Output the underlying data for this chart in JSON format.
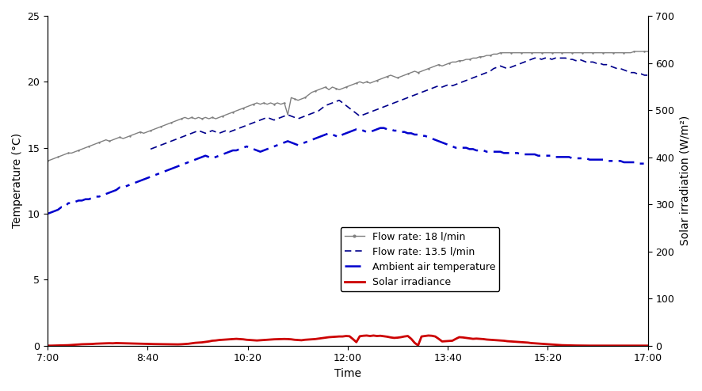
{
  "title": "",
  "xlabel": "Time",
  "ylabel_left": "Temperature (°C)",
  "ylabel_right": "Solar irradiation (W/m²)",
  "xlim": [
    0,
    600
  ],
  "ylim_left": [
    0,
    25
  ],
  "ylim_right": [
    0,
    700
  ],
  "xtick_labels": [
    "7:00",
    "8:40",
    "10:20",
    "12:00",
    "13:40",
    "15:20",
    "17:00"
  ],
  "xtick_positions": [
    0,
    100,
    200,
    300,
    400,
    500,
    600
  ],
  "ytick_left": [
    0,
    5,
    10,
    15,
    20,
    25
  ],
  "ytick_right": [
    0,
    100,
    200,
    300,
    400,
    500,
    600,
    700
  ],
  "legend_labels": [
    "Flow rate: 18 l/min",
    "Flow rate: 13.5 l/min",
    "Ambient air temperature",
    "Solar irradiance"
  ],
  "flow18_color": "#808080",
  "flow135_color": "#00008B",
  "ambient_color": "#0000CD",
  "solar_color": "#CC0000",
  "background_color": "#ffffff",
  "flow18": [
    14.0,
    14.1,
    14.2,
    14.3,
    14.4,
    14.5,
    14.6,
    14.6,
    14.7,
    14.8,
    14.9,
    15.0,
    15.1,
    15.2,
    15.3,
    15.4,
    15.5,
    15.6,
    15.5,
    15.6,
    15.7,
    15.8,
    15.7,
    15.8,
    15.9,
    16.0,
    16.1,
    16.2,
    16.1,
    16.2,
    16.3,
    16.4,
    16.5,
    16.6,
    16.7,
    16.8,
    16.9,
    17.0,
    17.1,
    17.2,
    17.3,
    17.2,
    17.3,
    17.2,
    17.3,
    17.2,
    17.3,
    17.2,
    17.3,
    17.2,
    17.3,
    17.4,
    17.5,
    17.6,
    17.7,
    17.8,
    17.9,
    18.0,
    18.1,
    18.2,
    18.3,
    18.4,
    18.3,
    18.4,
    18.3,
    18.4,
    18.3,
    18.4,
    18.3,
    18.4,
    17.5,
    18.8,
    18.7,
    18.6,
    18.7,
    18.8,
    19.0,
    19.2,
    19.3,
    19.4,
    19.5,
    19.6,
    19.4,
    19.6,
    19.5,
    19.4,
    19.5,
    19.6,
    19.7,
    19.8,
    19.9,
    20.0,
    19.9,
    20.0,
    19.9,
    20.0,
    20.1,
    20.2,
    20.3,
    20.4,
    20.5,
    20.4,
    20.3,
    20.4,
    20.5,
    20.6,
    20.7,
    20.8,
    20.7,
    20.8,
    20.9,
    21.0,
    21.1,
    21.2,
    21.3,
    21.2,
    21.3,
    21.4,
    21.5,
    21.5,
    21.6,
    21.6,
    21.7,
    21.7,
    21.8,
    21.8,
    21.9,
    21.9,
    22.0,
    22.0,
    22.1,
    22.1,
    22.2,
    22.2,
    22.2,
    22.2,
    22.2,
    22.2,
    22.2,
    22.2,
    22.2,
    22.2,
    22.2,
    22.2,
    22.2,
    22.2,
    22.2,
    22.2,
    22.2,
    22.2,
    22.2,
    22.2,
    22.2,
    22.2,
    22.2,
    22.2,
    22.2,
    22.2,
    22.2,
    22.2,
    22.2,
    22.2,
    22.2,
    22.2,
    22.2,
    22.2,
    22.2,
    22.2,
    22.2,
    22.2,
    22.2,
    22.3,
    22.3,
    22.3,
    22.3,
    22.3
  ],
  "flow135": [
    null,
    null,
    null,
    null,
    null,
    null,
    null,
    null,
    null,
    null,
    null,
    null,
    null,
    null,
    null,
    null,
    null,
    null,
    null,
    null,
    null,
    null,
    null,
    null,
    null,
    null,
    null,
    null,
    null,
    null,
    14.9,
    15.0,
    15.1,
    15.2,
    15.3,
    15.4,
    15.5,
    15.6,
    15.7,
    15.8,
    15.9,
    16.0,
    16.1,
    16.2,
    16.3,
    16.2,
    16.1,
    16.2,
    16.3,
    16.2,
    16.1,
    16.2,
    16.3,
    16.2,
    16.3,
    16.4,
    16.5,
    16.6,
    16.7,
    16.8,
    16.9,
    17.0,
    17.1,
    17.2,
    17.3,
    17.2,
    17.1,
    17.2,
    17.3,
    17.4,
    17.5,
    17.4,
    17.3,
    17.2,
    17.3,
    17.4,
    17.5,
    17.6,
    17.7,
    17.8,
    18.0,
    18.2,
    18.3,
    18.4,
    18.5,
    18.6,
    18.4,
    18.2,
    18.0,
    17.8,
    17.6,
    17.4,
    17.5,
    17.6,
    17.7,
    17.8,
    17.9,
    18.0,
    18.1,
    18.2,
    18.3,
    18.4,
    18.5,
    18.6,
    18.7,
    18.8,
    18.9,
    19.0,
    19.1,
    19.2,
    19.3,
    19.4,
    19.5,
    19.6,
    19.7,
    19.6,
    19.7,
    19.8,
    19.7,
    19.8,
    19.9,
    20.0,
    20.1,
    20.2,
    20.3,
    20.4,
    20.5,
    20.6,
    20.7,
    20.8,
    21.0,
    21.1,
    21.2,
    21.1,
    21.0,
    21.1,
    21.2,
    21.3,
    21.4,
    21.5,
    21.6,
    21.7,
    21.8,
    21.8,
    21.7,
    21.8,
    21.8,
    21.7,
    21.8,
    21.8,
    21.8,
    21.8,
    21.7,
    21.7,
    21.6,
    21.7,
    21.6,
    21.5,
    21.5,
    21.5,
    21.4,
    21.4,
    21.3,
    21.3,
    21.2,
    21.1,
    21.0,
    21.0,
    20.9,
    20.8,
    20.7,
    20.7,
    20.6,
    20.6,
    20.5,
    20.5,
    20.5,
    20.5,
    20.4,
    20.4,
    20.4
  ],
  "ambient": [
    10.0,
    10.1,
    10.2,
    10.3,
    10.5,
    10.5,
    10.8,
    10.8,
    10.9,
    11.0,
    11.0,
    11.1,
    11.1,
    11.2,
    11.3,
    11.3,
    11.4,
    11.5,
    11.6,
    11.7,
    11.8,
    12.0,
    12.0,
    12.1,
    12.2,
    12.3,
    12.4,
    12.5,
    12.6,
    12.7,
    12.8,
    12.9,
    13.0,
    13.1,
    13.2,
    13.3,
    13.4,
    13.5,
    13.6,
    13.7,
    13.8,
    13.9,
    14.0,
    14.1,
    14.2,
    14.3,
    14.4,
    14.3,
    14.2,
    14.3,
    14.4,
    14.5,
    14.6,
    14.7,
    14.8,
    14.8,
    14.9,
    15.0,
    15.1,
    15.0,
    14.9,
    14.8,
    14.7,
    14.8,
    14.9,
    15.0,
    15.1,
    15.2,
    15.3,
    15.4,
    15.5,
    15.4,
    15.3,
    15.2,
    15.3,
    15.4,
    15.5,
    15.6,
    15.7,
    15.8,
    15.9,
    16.0,
    16.1,
    16.0,
    15.9,
    15.8,
    16.0,
    16.1,
    16.2,
    16.3,
    16.4,
    16.4,
    16.3,
    16.2,
    16.2,
    16.3,
    16.4,
    16.5,
    16.5,
    16.4,
    16.4,
    16.3,
    16.3,
    16.2,
    16.2,
    16.1,
    16.1,
    16.0,
    16.0,
    15.9,
    15.9,
    15.8,
    15.7,
    15.6,
    15.5,
    15.4,
    15.3,
    15.2,
    15.1,
    15.0,
    15.0,
    15.0,
    15.0,
    14.9,
    14.9,
    14.8,
    14.8,
    14.8,
    14.7,
    14.7,
    14.7,
    14.7,
    14.7,
    14.6,
    14.6,
    14.6,
    14.6,
    14.6,
    14.5,
    14.5,
    14.5,
    14.5,
    14.5,
    14.4,
    14.4,
    14.4,
    14.4,
    14.4,
    14.3,
    14.3,
    14.3,
    14.3,
    14.3,
    14.2,
    14.2,
    14.2,
    14.2,
    14.2,
    14.1,
    14.1,
    14.1,
    14.1,
    14.1,
    14.0,
    14.0,
    14.0,
    14.0,
    14.0,
    13.9,
    13.9,
    13.9,
    13.9,
    13.8,
    13.8,
    13.8,
    13.8
  ],
  "solar": [
    0.0,
    0.0,
    0.2,
    0.3,
    0.5,
    0.8,
    1.0,
    1.5,
    2.0,
    2.5,
    3.0,
    3.2,
    3.4,
    3.6,
    4.2,
    4.5,
    4.8,
    5.0,
    5.2,
    5.0,
    5.5,
    5.3,
    5.2,
    5.0,
    4.8,
    4.5,
    4.2,
    4.0,
    3.8,
    3.6,
    3.5,
    3.4,
    3.3,
    3.2,
    3.1,
    3.0,
    2.9,
    2.8,
    2.7,
    3.0,
    3.5,
    4.0,
    5.0,
    6.0,
    6.5,
    7.0,
    8.0,
    9.0,
    10.5,
    11.0,
    12.0,
    12.5,
    13.0,
    13.5,
    14.0,
    14.5,
    14.0,
    13.5,
    12.5,
    12.0,
    11.5,
    11.0,
    11.5,
    12.0,
    12.5,
    13.0,
    13.5,
    13.8,
    14.0,
    14.2,
    14.0,
    13.5,
    12.5,
    12.0,
    11.5,
    12.5,
    13.0,
    13.5,
    14.0,
    15.0,
    16.0,
    17.0,
    18.0,
    18.5,
    19.0,
    19.5,
    19.5,
    20.5,
    20.0,
    14.0,
    7.5,
    20.0,
    21.0,
    21.5,
    20.5,
    21.5,
    20.5,
    21.0,
    20.0,
    19.0,
    17.5,
    16.5,
    17.0,
    18.0,
    19.5,
    20.5,
    14.5,
    6.0,
    0.5,
    19.5,
    20.5,
    21.5,
    21.0,
    19.5,
    14.5,
    9.0,
    9.5,
    10.0,
    10.5,
    14.5,
    18.0,
    17.5,
    16.5,
    15.5,
    14.5,
    15.0,
    14.5,
    14.0,
    13.0,
    12.5,
    12.0,
    11.5,
    11.0,
    10.5,
    9.5,
    9.0,
    8.5,
    8.0,
    7.5,
    7.0,
    6.5,
    5.5,
    5.0,
    4.5,
    4.0,
    3.5,
    3.0,
    2.5,
    2.0,
    1.5,
    1.0,
    0.8,
    0.5,
    0.4,
    0.3,
    0.2,
    0.1,
    0.0,
    0.0,
    0.0,
    0.0,
    0.0,
    0.0,
    0.0,
    0.0,
    0.0,
    0.0,
    0.0,
    0.0,
    0.0,
    0.0,
    0.0,
    0.0,
    0.0,
    0.0,
    0.0
  ]
}
